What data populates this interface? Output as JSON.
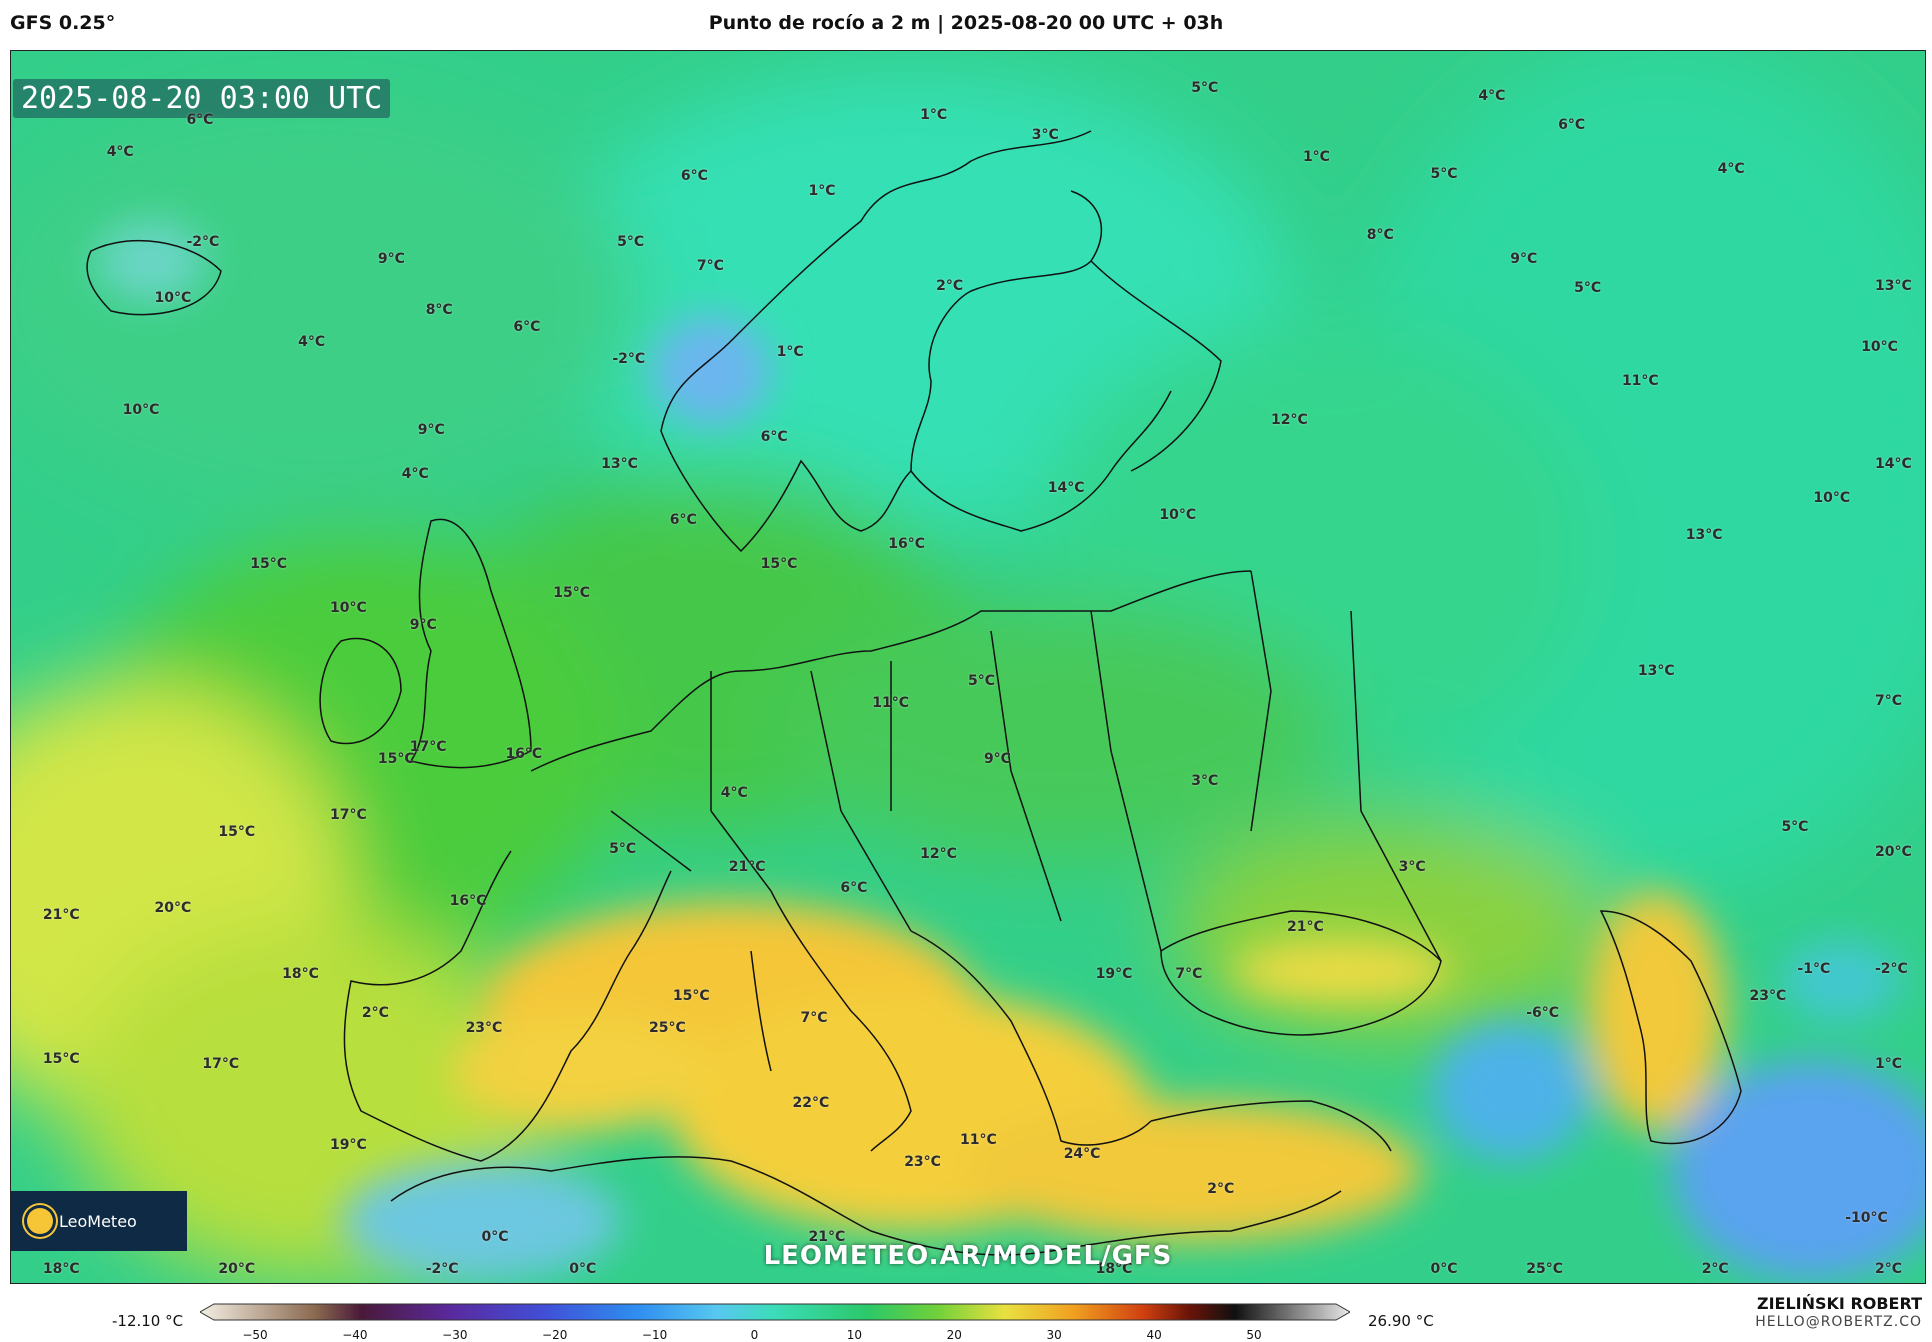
{
  "header": {
    "model": "GFS 0.25°",
    "title": "Punto de rocío a 2 m | 2025-08-20 00 UTC + 03h"
  },
  "map": {
    "timestamp": "2025-08-20 03:00 UTC",
    "watermark": "LEOMETEO.AR/MODEL/GFS",
    "logo": "LeoMeteo",
    "labels": [
      {
        "text": "4°C",
        "lon": 62,
        "lat": 70.5
      },
      {
        "text": "6°C",
        "lon": 67,
        "lat": 69.3
      },
      {
        "text": "4°C",
        "lon": 77,
        "lat": 67.5
      },
      {
        "text": "1°C",
        "lon": 27,
        "lat": 69.7
      },
      {
        "text": "5°C",
        "lon": 44,
        "lat": 70.8
      },
      {
        "text": "3°C",
        "lon": 34,
        "lat": 68.9
      },
      {
        "text": "1°C",
        "lon": 51,
        "lat": 68
      },
      {
        "text": "5°C",
        "lon": 59,
        "lat": 67.3
      },
      {
        "text": "6°C",
        "lon": -19,
        "lat": 69.5
      },
      {
        "text": "4°C",
        "lon": -24,
        "lat": 68.2
      },
      {
        "text": "6°C",
        "lon": 12,
        "lat": 67.2
      },
      {
        "text": "1°C",
        "lon": 20,
        "lat": 66.6
      },
      {
        "text": "8°C",
        "lon": 55,
        "lat": 64.8
      },
      {
        "text": "-2°C",
        "lon": -19,
        "lat": 64.5
      },
      {
        "text": "5°C",
        "lon": 8,
        "lat": 64.5
      },
      {
        "text": "9°C",
        "lon": -7,
        "lat": 63.8
      },
      {
        "text": "7°C",
        "lon": 13,
        "lat": 63.5
      },
      {
        "text": "9°C",
        "lon": 64,
        "lat": 63.8
      },
      {
        "text": "2°C",
        "lon": 28,
        "lat": 62.7
      },
      {
        "text": "5°C",
        "lon": 68,
        "lat": 62.6
      },
      {
        "text": "13°C",
        "lon": 88,
        "lat": 62.7
      },
      {
        "text": "10°C",
        "lon": -21,
        "lat": 62.2
      },
      {
        "text": "8°C",
        "lon": -4,
        "lat": 61.7
      },
      {
        "text": "6°C",
        "lon": 1.5,
        "lat": 61
      },
      {
        "text": "4°C",
        "lon": -12,
        "lat": 60.4
      },
      {
        "text": "-2°C",
        "lon": 7.7,
        "lat": 59.7
      },
      {
        "text": "1°C",
        "lon": 18,
        "lat": 60
      },
      {
        "text": "10°C",
        "lon": 86,
        "lat": 60.2
      },
      {
        "text": "11°C",
        "lon": 71,
        "lat": 58.8
      },
      {
        "text": "10°C",
        "lon": -23,
        "lat": 57.6
      },
      {
        "text": "9°C",
        "lon": -4.5,
        "lat": 56.8
      },
      {
        "text": "6°C",
        "lon": 17,
        "lat": 56.5
      },
      {
        "text": "12°C",
        "lon": 49,
        "lat": 57.2
      },
      {
        "text": "13°C",
        "lon": 7,
        "lat": 55.4
      },
      {
        "text": "4°C",
        "lon": -5.5,
        "lat": 55
      },
      {
        "text": "14°C",
        "lon": 35,
        "lat": 54.4
      },
      {
        "text": "14°C",
        "lon": 88,
        "lat": 55.4
      },
      {
        "text": "10°C",
        "lon": 83,
        "lat": 54
      },
      {
        "text": "10°C",
        "lon": 42,
        "lat": 53.3
      },
      {
        "text": "6°C",
        "lon": 11.3,
        "lat": 53.1
      },
      {
        "text": "13°C",
        "lon": 75,
        "lat": 52.5
      },
      {
        "text": "16°C",
        "lon": 25,
        "lat": 52.1
      },
      {
        "text": "15°C",
        "lon": -15,
        "lat": 51.3
      },
      {
        "text": "15°C",
        "lon": 17,
        "lat": 51.3
      },
      {
        "text": "15°C",
        "lon": 4,
        "lat": 50.1
      },
      {
        "text": "10°C",
        "lon": -10,
        "lat": 49.5
      },
      {
        "text": "9°C",
        "lon": -5,
        "lat": 48.8
      },
      {
        "text": "13°C",
        "lon": 72,
        "lat": 46.9
      },
      {
        "text": "5°C",
        "lon": 30,
        "lat": 46.5
      },
      {
        "text": "7°C",
        "lon": 88,
        "lat": 45.7
      },
      {
        "text": "11°C",
        "lon": 24,
        "lat": 45.6
      },
      {
        "text": "17°C",
        "lon": -5,
        "lat": 43.8
      },
      {
        "text": "15°C",
        "lon": -7,
        "lat": 43.3
      },
      {
        "text": "16°C",
        "lon": 1,
        "lat": 43.5
      },
      {
        "text": "9°C",
        "lon": 31,
        "lat": 43.3
      },
      {
        "text": "3°C",
        "lon": 44,
        "lat": 42.4
      },
      {
        "text": "4°C",
        "lon": 14.5,
        "lat": 41.9
      },
      {
        "text": "5°C",
        "lon": 81,
        "lat": 40.5
      },
      {
        "text": "15°C",
        "lon": -17,
        "lat": 40.3
      },
      {
        "text": "17°C",
        "lon": -10,
        "lat": 41
      },
      {
        "text": "5°C",
        "lon": 7.5,
        "lat": 39.6
      },
      {
        "text": "12°C",
        "lon": 27,
        "lat": 39.4
      },
      {
        "text": "20°C",
        "lon": 87,
        "lat": 39.5
      },
      {
        "text": "21°C",
        "lon": 15,
        "lat": 38.9
      },
      {
        "text": "3°C",
        "lon": 57,
        "lat": 38.9
      },
      {
        "text": "6°C",
        "lon": 22,
        "lat": 38
      },
      {
        "text": "16°C",
        "lon": -2.5,
        "lat": 37.5
      },
      {
        "text": "21°C",
        "lon": -28,
        "lat": 36.9
      },
      {
        "text": "20°C",
        "lon": -21,
        "lat": 37.2
      },
      {
        "text": "21°C",
        "lon": 50,
        "lat": 36.4
      },
      {
        "text": "18°C",
        "lon": -13,
        "lat": 34.5
      },
      {
        "text": "19°C",
        "lon": 38,
        "lat": 34.5
      },
      {
        "text": "7°C",
        "lon": 43,
        "lat": 34.5
      },
      {
        "text": "-1°C",
        "lon": 82,
        "lat": 34.7
      },
      {
        "text": "-2°C",
        "lon": 88,
        "lat": 34.7
      },
      {
        "text": "15°C",
        "lon": 11.5,
        "lat": 33.6
      },
      {
        "text": "23°C",
        "lon": 79,
        "lat": 33.6
      },
      {
        "text": "2°C",
        "lon": -8,
        "lat": 32.9
      },
      {
        "text": "-6°C",
        "lon": 65,
        "lat": 32.9
      },
      {
        "text": "23°C",
        "lon": -1.5,
        "lat": 32.3
      },
      {
        "text": "25°C",
        "lon": 10,
        "lat": 32.3
      },
      {
        "text": "7°C",
        "lon": 19.5,
        "lat": 32.7
      },
      {
        "text": "15°C",
        "lon": -28,
        "lat": 31
      },
      {
        "text": "17°C",
        "lon": -18,
        "lat": 30.8
      },
      {
        "text": "1°C",
        "lon": 87.5,
        "lat": 30.8
      },
      {
        "text": "22°C",
        "lon": 19,
        "lat": 29.2
      },
      {
        "text": "11°C",
        "lon": 29.5,
        "lat": 27.7
      },
      {
        "text": "24°C",
        "lon": 36,
        "lat": 27.1
      },
      {
        "text": "23°C",
        "lon": 26,
        "lat": 26.8
      },
      {
        "text": "19°C",
        "lon": -10,
        "lat": 27.5
      },
      {
        "text": "2°C",
        "lon": 45,
        "lat": 25.7
      },
      {
        "text": "0°C",
        "lon": -0.5,
        "lat": 23.7
      },
      {
        "text": "21°C",
        "lon": 20,
        "lat": 23.7
      },
      {
        "text": "-10°C",
        "lon": 85,
        "lat": 24.5
      },
      {
        "text": "18°C",
        "lon": -28,
        "lat": 22.4
      },
      {
        "text": "20°C",
        "lon": -17,
        "lat": 22.4
      },
      {
        "text": "-2°C",
        "lon": -4,
        "lat": 22.4
      },
      {
        "text": "0°C",
        "lon": 5,
        "lat": 22.4
      },
      {
        "text": "18°C",
        "lon": 38,
        "lat": 22.4
      },
      {
        "text": "0°C",
        "lon": 59,
        "lat": 22.4
      },
      {
        "text": "25°C",
        "lon": 65,
        "lat": 22.4
      },
      {
        "text": "2°C",
        "lon": 76,
        "lat": 22.4
      },
      {
        "text": "2°C",
        "lon": 88,
        "lat": 22.4
      }
    ]
  },
  "legend": {
    "min_label": "-12.10 °C",
    "max_label": "26.90 °C",
    "ticks": [
      "−50",
      "−40",
      "−30",
      "−20",
      "−10",
      "0",
      "10",
      "20",
      "30",
      "40",
      "50"
    ]
  },
  "credits": {
    "author": "ZIELIŃSKI ROBERT",
    "email": "HELLO@ROBERTZ.CO"
  },
  "colors": {
    "ocean_teal": "#2ed3a4",
    "land_green": "#3ec24a",
    "warm_yellow": "#f3d63b",
    "hot_orange": "#f1a526",
    "cold_blue": "#5fa8f0"
  }
}
